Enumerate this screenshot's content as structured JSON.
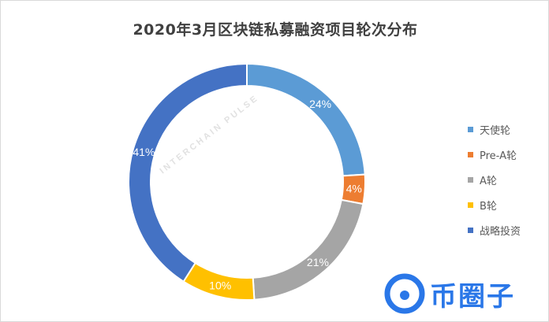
{
  "chart_data": {
    "type": "pie",
    "title": "2020年3月区块链私募融资项目轮次分布",
    "donut": true,
    "labels": [
      "天使轮",
      "Pre-A轮",
      "A轮",
      "B轮",
      "战略投资"
    ],
    "values": [
      24,
      4,
      21,
      10,
      41
    ],
    "value_labels": [
      "24%",
      "4%",
      "21%",
      "10%",
      "41%"
    ],
    "colors": [
      "#5b9bd5",
      "#ed7d31",
      "#a5a5a5",
      "#ffc000",
      "#4472c4"
    ],
    "legend_position": "right"
  },
  "watermark": {
    "text": "INTERCHAIN PULSE",
    "brand_mark": "币圈子"
  }
}
